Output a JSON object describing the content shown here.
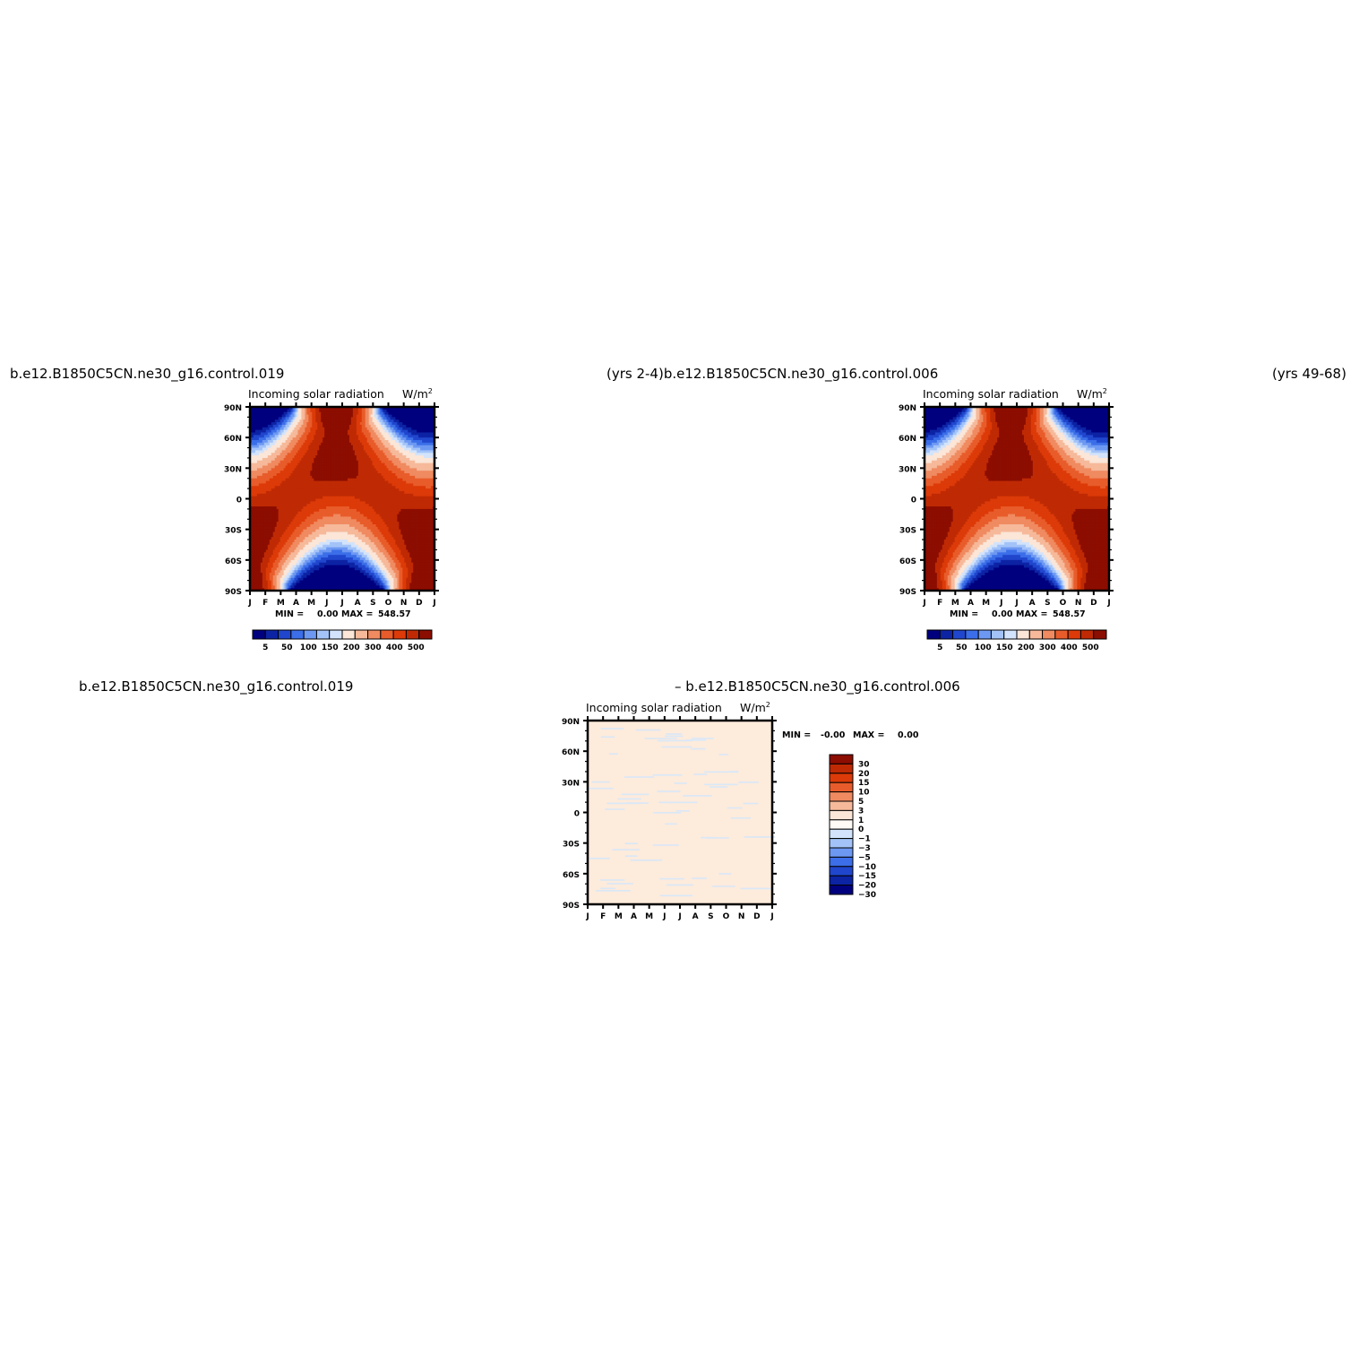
{
  "headers": {
    "top_left": "b.e12.B1850C5CN.ne30_g16.control.019",
    "top_middle": "(yrs 2-4)b.e12.B1850C5CN.ne30_g16.control.006",
    "top_right": "(yrs 49-68)",
    "bottom_left": "b.e12.B1850C5CN.ne30_g16.control.019",
    "bottom_middle": "– b.e12.B1850C5CN.ne30_g16.control.006"
  },
  "chart_data": [
    {
      "type": "heatmap",
      "title": "Incoming  solar  radiation",
      "units": "W/m",
      "units_sup": "2",
      "x_ticks": [
        "J",
        "F",
        "M",
        "A",
        "M",
        "J",
        "J",
        "A",
        "S",
        "O",
        "N",
        "D",
        "J"
      ],
      "y_ticks": [
        "90N",
        "60N",
        "30N",
        "0",
        "30S",
        "60S",
        "90S"
      ],
      "min_label": "MIN =",
      "min_value": "0.00",
      "max_label": "MAX =",
      "max_value": "548.57",
      "levels": [
        5,
        50,
        100,
        150,
        200,
        300,
        400,
        500
      ],
      "colorbar_labels": [
        "5",
        "50",
        "100",
        "150",
        "200",
        "300",
        "400",
        "500"
      ],
      "colors": [
        "#00007f",
        "#0c23a4",
        "#2046cd",
        "#3b6ee8",
        "#6d98f2",
        "#a3c3f8",
        "#d2e3fb",
        "#fbe6d8",
        "#f6b99a",
        "#f08a60",
        "#e85c2b",
        "#dc3a08",
        "#bf2a04",
        "#8c0d01"
      ]
    },
    {
      "type": "heatmap",
      "title": "Incoming  solar  radiation",
      "units": "W/m",
      "units_sup": "2",
      "x_ticks": [
        "J",
        "F",
        "M",
        "A",
        "M",
        "J",
        "J",
        "A",
        "S",
        "O",
        "N",
        "D",
        "J"
      ],
      "y_ticks": [
        "90N",
        "60N",
        "30N",
        "0",
        "30S",
        "60S",
        "90S"
      ],
      "min_label": "MIN =",
      "min_value": "0.00",
      "max_label": "MAX =",
      "max_value": "548.57",
      "levels": [
        5,
        50,
        100,
        150,
        200,
        300,
        400,
        500
      ],
      "colorbar_labels": [
        "5",
        "50",
        "100",
        "150",
        "200",
        "300",
        "400",
        "500"
      ],
      "colors": [
        "#00007f",
        "#0c23a4",
        "#2046cd",
        "#3b6ee8",
        "#6d98f2",
        "#a3c3f8",
        "#d2e3fb",
        "#fbe6d8",
        "#f6b99a",
        "#f08a60",
        "#e85c2b",
        "#dc3a08",
        "#bf2a04",
        "#8c0d01"
      ]
    },
    {
      "type": "heatmap",
      "title": "Incoming  solar  radiation",
      "units": "W/m",
      "units_sup": "2",
      "x_ticks": [
        "J",
        "F",
        "M",
        "A",
        "M",
        "J",
        "J",
        "A",
        "S",
        "O",
        "N",
        "D",
        "J"
      ],
      "y_ticks": [
        "90N",
        "60N",
        "30N",
        "0",
        "30S",
        "60S",
        "90S"
      ],
      "min_label": "MIN =",
      "min_value": "-0.00",
      "max_label": "MAX =",
      "max_value": "0.00",
      "levels": [
        30,
        20,
        15,
        10,
        5,
        3,
        1,
        0,
        -1,
        -3,
        -5,
        -10,
        -15,
        -20,
        -30
      ],
      "colorbar_labels": [
        "30",
        "20",
        "15",
        "10",
        "5",
        "3",
        "1",
        "0",
        "−1",
        "−3",
        "−5",
        "−10",
        "−15",
        "−20",
        "−30"
      ],
      "colors": [
        "#8c0d01",
        "#bf2a04",
        "#dc3a08",
        "#e85c2b",
        "#f08a60",
        "#f6b99a",
        "#fbe6d8",
        "#fefaf6",
        "#d2e3fb",
        "#a3c3f8",
        "#6d98f2",
        "#3b6ee8",
        "#2046cd",
        "#0c23a4",
        "#00007f"
      ],
      "field_fill": "#fdebdc",
      "noise_color": "#d9e8f7"
    }
  ]
}
